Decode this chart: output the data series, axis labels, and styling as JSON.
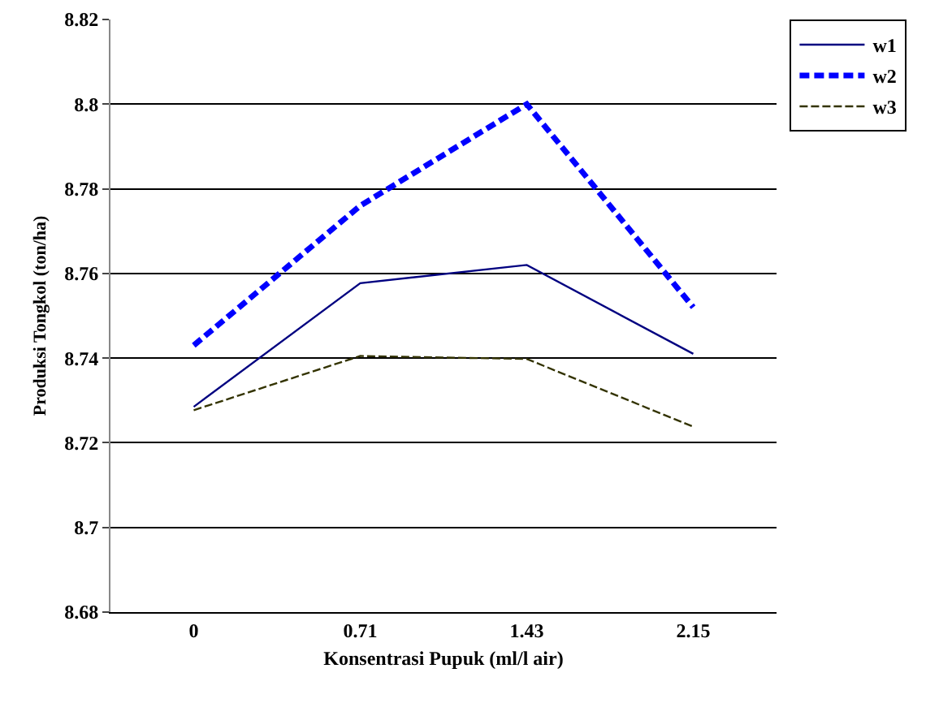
{
  "chart_data": {
    "type": "line",
    "xlabel": "Konsentrasi Pupuk (ml/l air)",
    "ylabel": "Produksi Tongkol (ton/ha)",
    "categories": [
      "0",
      "0.71",
      "1.43",
      "2.15"
    ],
    "series": [
      {
        "name": "w1",
        "color": "#000080",
        "line_style": "solid",
        "values": [
          8.7285,
          8.7577,
          8.762,
          8.741
        ]
      },
      {
        "name": "w2",
        "color": "#0000ff",
        "line_style": "dashed",
        "values": [
          8.743,
          8.776,
          8.8,
          8.752
        ]
      },
      {
        "name": "w3",
        "color": "#333300",
        "line_style": "dashed",
        "values": [
          8.7277,
          8.7405,
          8.7398,
          8.7238
        ]
      }
    ],
    "ylim": [
      8.68,
      8.82
    ],
    "yticks": [
      8.68,
      8.7,
      8.72,
      8.74,
      8.76,
      8.78,
      8.8,
      8.82
    ],
    "grid": "y",
    "legend": "right",
    "marker": "none"
  }
}
